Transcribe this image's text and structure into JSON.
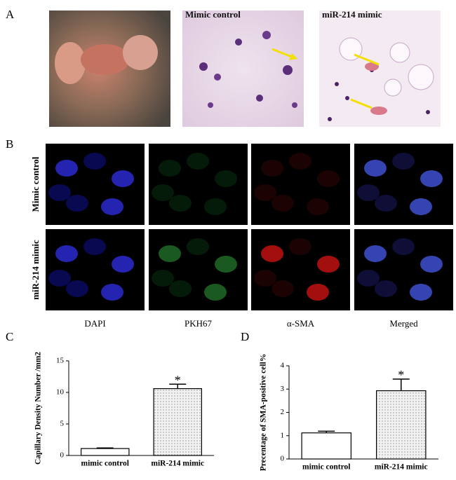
{
  "panel_a": {
    "label": "A",
    "captions": [
      "Mimic control",
      "miR-214 mimic"
    ]
  },
  "panel_b": {
    "label": "B",
    "rows": [
      "Mimic control",
      "miR-214 mimic"
    ],
    "columns": [
      "DAPI",
      "PKH67",
      "α-SMA",
      "Merged"
    ],
    "column_colors": [
      "#1a1aa8",
      "#1e8a2e",
      "#e01010",
      "#c8960a"
    ]
  },
  "chart_data": [
    {
      "type": "bar",
      "panel": "C",
      "ylabel": "Capillary Density Number /mm2",
      "categories": [
        "mimic control",
        "miR-214 mimic"
      ],
      "values": [
        1.1,
        10.6
      ],
      "errors": [
        0.1,
        0.7
      ],
      "significance": [
        null,
        "*"
      ],
      "colors": [
        "#ffffff",
        "#f2f2f2"
      ],
      "pattern": [
        null,
        "dots"
      ],
      "ylim": [
        0,
        15
      ],
      "yticks": [
        0,
        5,
        10,
        15
      ]
    },
    {
      "type": "bar",
      "panel": "D",
      "ylabel": "Precentage of SMA-positive cell%",
      "categories": [
        "mimic control",
        "miR-214 mimic"
      ],
      "values": [
        1.12,
        2.93
      ],
      "errors": [
        0.07,
        0.5
      ],
      "significance": [
        null,
        "*"
      ],
      "colors": [
        "#ffffff",
        "#f2f2f2"
      ],
      "pattern": [
        null,
        "dots"
      ],
      "ylim": [
        0,
        4
      ],
      "yticks": [
        0,
        1,
        2,
        3,
        4
      ]
    }
  ]
}
